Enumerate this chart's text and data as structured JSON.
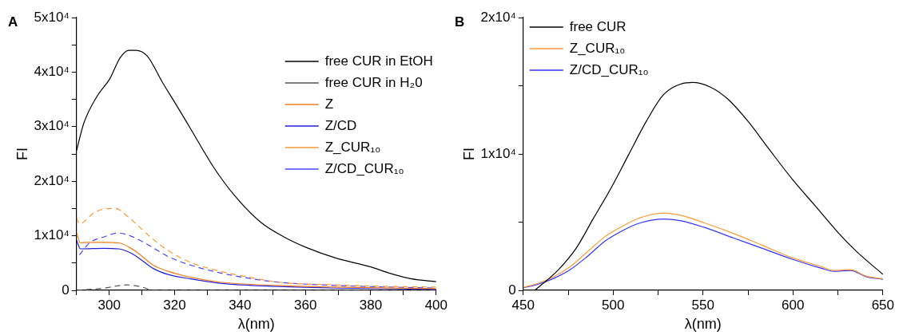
{
  "chart_data": [
    {
      "type": "line",
      "annotations": [
        "A"
      ],
      "xlabel": "λ(nm)",
      "ylabel": "FI",
      "xlim": [
        290,
        400
      ],
      "xticks": [
        {
          "value": 290,
          "label": null
        },
        300,
        {
          "value": 310,
          "label": null
        },
        320,
        {
          "value": 330,
          "label": null
        },
        340,
        {
          "value": 350,
          "label": null
        },
        360,
        {
          "value": 370,
          "label": null
        },
        380,
        {
          "value": 390,
          "label": null
        },
        400
      ],
      "ylim": [
        0,
        50000
      ],
      "yticks": [
        {
          "value": 0,
          "label": "0"
        },
        {
          "value": 5000,
          "label": null
        },
        {
          "value": 10000,
          "label": "1x10⁴"
        },
        {
          "value": 15000,
          "label": null
        },
        {
          "value": 20000,
          "label": "2x10⁴"
        },
        {
          "value": 25000,
          "label": null
        },
        {
          "value": 30000,
          "label": "3x10⁴"
        },
        {
          "value": 35000,
          "label": null
        },
        {
          "value": 40000,
          "label": "4x10⁴"
        },
        {
          "value": 45000,
          "label": null
        },
        {
          "value": 50000,
          "label": "5x10⁴"
        }
      ],
      "grid": false,
      "legend": "top right",
      "marker": "none",
      "series": [
        {
          "name": "free CUR in EtOH",
          "color": "#000000",
          "line_style": "solid",
          "x": [
            290,
            292.2,
            296.2,
            300.2,
            303.3,
            306,
            308.2,
            311.7,
            316.2,
            320.6,
            325,
            332.1,
            338.3,
            346.3,
            353.4,
            360.5,
            369.4,
            380,
            385.4,
            392.5,
            400
          ],
          "values": [
            25600,
            30600,
            35500,
            38800,
            42600,
            44000,
            44000,
            42900,
            38200,
            33900,
            29500,
            22400,
            17400,
            12500,
            9800,
            7800,
            5900,
            4300,
            3200,
            2100,
            1600
          ]
        },
        {
          "name": "free CUR in H₂0",
          "color": "#555555",
          "line_style": "dashed",
          "x": [
            290,
            298.4,
            305.5,
            310,
            313.5,
            400
          ],
          "values": [
            0,
            400,
            1000,
            600,
            0,
            0
          ]
        },
        {
          "name": "Z",
          "color": "#f07f1e",
          "line_style": "solid",
          "x": [
            290,
            291.2,
            293.1,
            298.4,
            302.9,
            306.4,
            309.1,
            313.5,
            318,
            325,
            333.9,
            351.6,
            369.4,
            400
          ],
          "values": [
            10600,
            8700,
            8800,
            8800,
            8700,
            7800,
            6700,
            4600,
            3500,
            2400,
            1500,
            900,
            600,
            300
          ]
        },
        {
          "name": "Z/CD",
          "color": "#2020e0",
          "line_style": "solid",
          "x": [
            290,
            291.2,
            298.4,
            302.9,
            306.4,
            309.1,
            313.5,
            318,
            325,
            333.9,
            351.6,
            369.4,
            400
          ],
          "values": [
            9200,
            7600,
            7700,
            7600,
            6900,
            5900,
            4000,
            2900,
            2100,
            1300,
            700,
            400,
            200
          ]
        },
        {
          "name": "Z_CUR₁₀",
          "color": "#ff9933",
          "line_style": "dashed",
          "x": [
            290,
            290.9,
            295.8,
            302,
            305.5,
            312.6,
            318,
            325,
            333.9,
            342.8,
            351.6,
            369.4,
            387.1,
            400
          ],
          "values": [
            13300,
            12200,
            14400,
            15000,
            13600,
            9800,
            7300,
            5100,
            3500,
            2400,
            1500,
            1000,
            700,
            600
          ]
        },
        {
          "name": "Z/CD_CUR₁₀",
          "color": "#4444ff",
          "line_style": "dashed",
          "x": [
            290.9,
            294,
            298.4,
            302.9,
            306.4,
            312.6,
            318,
            325,
            333.9,
            342.8,
            351.6,
            369.4,
            400
          ],
          "values": [
            6500,
            8700,
            9800,
            10500,
            10000,
            8100,
            6200,
            4600,
            3200,
            2200,
            1500,
            900,
            400
          ]
        }
      ]
    },
    {
      "type": "line",
      "annotations": [
        "B"
      ],
      "xlabel": "λ(nm)",
      "ylabel": "FI",
      "xlim": [
        450,
        650
      ],
      "xticks": [
        450,
        {
          "value": 475,
          "label": null
        },
        500,
        {
          "value": 525,
          "label": null
        },
        550,
        {
          "value": 575,
          "label": null
        },
        600,
        {
          "value": 625,
          "label": null
        },
        650
      ],
      "ylim": [
        0,
        20000
      ],
      "yticks": [
        {
          "value": 0,
          "label": "0"
        },
        {
          "value": 5000,
          "label": null
        },
        {
          "value": 10000,
          "label": "1x10⁴"
        },
        {
          "value": 15000,
          "label": null
        },
        {
          "value": 20000,
          "label": "2x10⁴"
        }
      ],
      "grid": false,
      "legend": "top left",
      "marker": "none",
      "series": [
        {
          "name": "free CUR",
          "color": "#000000",
          "line_style": "solid",
          "x": [
            456.5,
            469.5,
            479.3,
            489,
            498.8,
            508.5,
            518.3,
            528,
            537.8,
            544.3,
            554.1,
            563.8,
            575.2,
            586.6,
            599.6,
            612.6,
            625.6,
            635.4,
            650
          ],
          "values": [
            0,
            1500,
            3060,
            5270,
            7490,
            9920,
            12360,
            14350,
            15130,
            15240,
            14900,
            14020,
            12360,
            10370,
            8150,
            6160,
            4160,
            2840,
            1170
          ]
        },
        {
          "name": "Z_CUR₁₀",
          "color": "#ff9933",
          "line_style": "solid",
          "x": [
            450,
            458.1,
            466.3,
            476,
            485.8,
            495.5,
            505.4,
            515,
            528,
            537.8,
            550.8,
            567.1,
            583.3,
            599.6,
            615.9,
            622.4,
            632.2,
            640.3,
            650
          ],
          "values": [
            220,
            510,
            950,
            1730,
            2840,
            3940,
            4720,
            5320,
            5670,
            5490,
            4940,
            4160,
            3280,
            2390,
            1730,
            1460,
            1510,
            1060,
            840
          ]
        },
        {
          "name": "Z/CD_CUR₁₀",
          "color": "#3333ff",
          "line_style": "solid",
          "x": [
            450,
            458.1,
            466.3,
            476,
            485.8,
            495.5,
            505.4,
            515,
            528,
            537.8,
            550.8,
            567.1,
            583.3,
            599.6,
            615.9,
            622.4,
            632.2,
            640.3,
            650
          ],
          "values": [
            180,
            440,
            840,
            1510,
            2500,
            3610,
            4390,
            4940,
            5230,
            5100,
            4610,
            3830,
            3060,
            2280,
            1620,
            1400,
            1460,
            1020,
            800
          ]
        }
      ]
    }
  ]
}
